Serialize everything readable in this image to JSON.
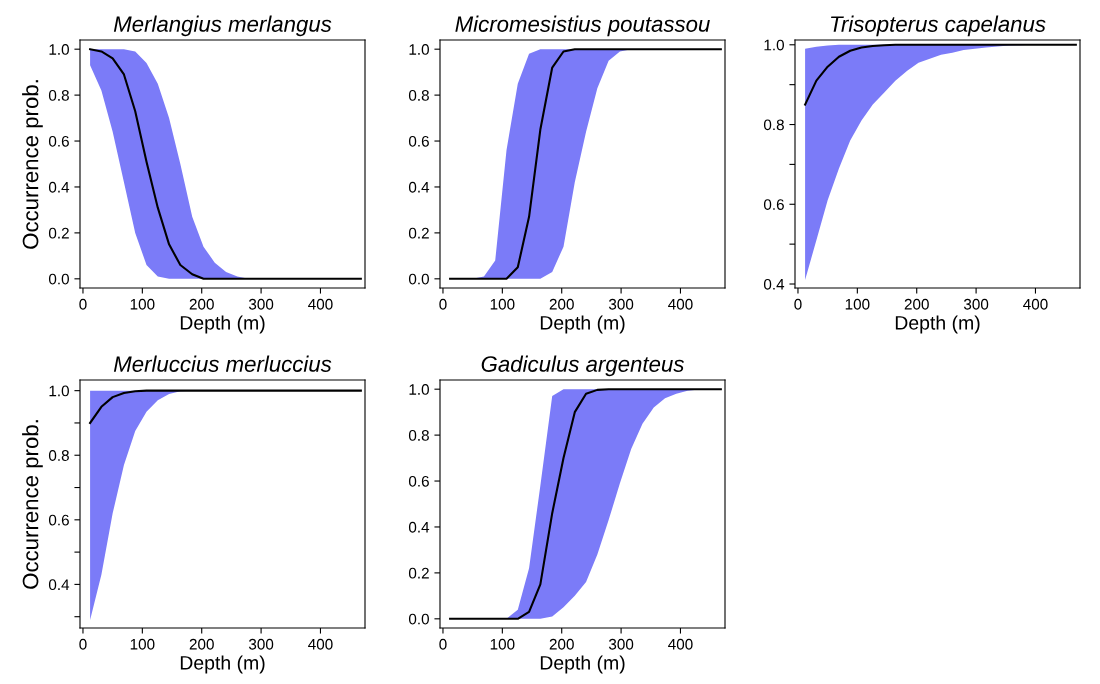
{
  "chart_data": [
    {
      "type": "line",
      "title": "Merlangius merlangus",
      "xlabel": "Depth (m)",
      "ylabel": "Occurrence prob.",
      "x": [
        12,
        31,
        50,
        69,
        88,
        107,
        126,
        145,
        164,
        184,
        203,
        222,
        241,
        260,
        279,
        298,
        317,
        336,
        355,
        374,
        393,
        412,
        431,
        450,
        468
      ],
      "series": [
        {
          "color": "#000000",
          "values": [
            1.0,
            0.99,
            0.96,
            0.89,
            0.73,
            0.51,
            0.31,
            0.15,
            0.06,
            0.02,
            0.0,
            0.0,
            0.0,
            0.0,
            0.0,
            0.0,
            0.0,
            0.0,
            0.0,
            0.0,
            0.0,
            0.0,
            0.0,
            0.0,
            0.0
          ],
          "lower": [
            0.93,
            0.82,
            0.64,
            0.42,
            0.2,
            0.06,
            0.01,
            0.0,
            0.0,
            0.0,
            0.0,
            0.0,
            0.0,
            0.0,
            0.0,
            0.0,
            0.0,
            0.0,
            0.0,
            0.0,
            0.0,
            0.0,
            0.0,
            0.0,
            0.0
          ],
          "upper": [
            1.0,
            1.0,
            1.0,
            1.0,
            0.99,
            0.94,
            0.85,
            0.7,
            0.5,
            0.27,
            0.14,
            0.07,
            0.03,
            0.01,
            0.0,
            0.0,
            0.0,
            0.0,
            0.0,
            0.0,
            0.0,
            0.0,
            0.0,
            0.0,
            0.0
          ]
        }
      ],
      "xlim": [
        -5,
        475
      ],
      "ylim": [
        -0.04,
        1.04
      ],
      "xticks": [
        0,
        100,
        200,
        300,
        400
      ],
      "yticks": [
        {
          "value": 0,
          "label": "0.0"
        },
        0.2,
        0.4,
        0.6,
        0.8,
        {
          "value": 1,
          "label": "1.0"
        }
      ]
    },
    {
      "type": "line",
      "title": "Micromesistius poutassou",
      "xlabel": "Depth (m)",
      "x": [
        12,
        31,
        50,
        69,
        88,
        107,
        126,
        145,
        164,
        184,
        203,
        222,
        241,
        260,
        279,
        298,
        317,
        336,
        355,
        374,
        393,
        412,
        431,
        450,
        468
      ],
      "series": [
        {
          "color": "#000000",
          "values": [
            0.0,
            0.0,
            0.0,
            0.0,
            0.0,
            0.0,
            0.05,
            0.27,
            0.65,
            0.92,
            0.99,
            1.0,
            1.0,
            1.0,
            1.0,
            1.0,
            1.0,
            1.0,
            1.0,
            1.0,
            1.0,
            1.0,
            1.0,
            1.0,
            1.0
          ],
          "lower": [
            0.0,
            0.0,
            0.0,
            0.01,
            0.08,
            0.56,
            0.85,
            0.98,
            1.0,
            1.0,
            1.0,
            1.0,
            1.0,
            1.0,
            1.0,
            1.0,
            1.0,
            1.0,
            1.0,
            1.0,
            1.0,
            1.0,
            1.0,
            1.0,
            1.0
          ],
          "upper": [
            0.0,
            0.0,
            0.0,
            0.0,
            0.0,
            0.0,
            0.0,
            0.0,
            0.0,
            0.03,
            0.14,
            0.42,
            0.64,
            0.83,
            0.95,
            0.99,
            1.0,
            1.0,
            1.0,
            1.0,
            1.0,
            1.0,
            1.0,
            1.0,
            1.0
          ]
        }
      ],
      "xlim": [
        -5,
        475
      ],
      "ylim": [
        -0.04,
        1.04
      ],
      "xticks": [
        0,
        100,
        200,
        300,
        400
      ],
      "yticks": [
        {
          "value": 0,
          "label": "0.0"
        },
        0.2,
        0.4,
        0.6,
        0.8,
        {
          "value": 1,
          "label": "1.0"
        }
      ]
    },
    {
      "type": "line",
      "title": "Trisopterus capelanus",
      "xlabel": "Depth (m)",
      "x": [
        12,
        31,
        50,
        69,
        88,
        107,
        126,
        145,
        164,
        184,
        203,
        222,
        241,
        260,
        279,
        298,
        317,
        336,
        355,
        374,
        393,
        412,
        431,
        450,
        468
      ],
      "series": [
        {
          "color": "#000000",
          "values": [
            0.85,
            0.91,
            0.945,
            0.97,
            0.985,
            0.993,
            0.997,
            0.999,
            1.0,
            1.0,
            1.0,
            1.0,
            1.0,
            1.0,
            1.0,
            1.0,
            1.0,
            1.0,
            1.0,
            1.0,
            1.0,
            1.0,
            1.0,
            1.0,
            1.0
          ],
          "lower": [
            0.41,
            0.51,
            0.61,
            0.69,
            0.76,
            0.81,
            0.85,
            0.88,
            0.91,
            0.935,
            0.955,
            0.965,
            0.975,
            0.98,
            0.987,
            0.99,
            0.993,
            0.996,
            0.998,
            0.999,
            1.0,
            1.0,
            1.0,
            1.0,
            1.0
          ],
          "upper": [
            0.99,
            0.995,
            0.998,
            1.0,
            1.0,
            1.0,
            1.0,
            1.0,
            1.0,
            1.0,
            1.0,
            1.0,
            1.0,
            1.0,
            1.0,
            1.0,
            1.0,
            1.0,
            1.0,
            1.0,
            1.0,
            1.0,
            1.0,
            1.0,
            1.0
          ]
        }
      ],
      "xlim": [
        -5,
        475
      ],
      "ylim": [
        0.39,
        1.012
      ],
      "xticks": [
        0,
        100,
        200,
        300,
        400
      ],
      "yticks": [
        0.4,
        {
          "value": 0.5,
          "label": null
        },
        0.6,
        {
          "value": 0.7,
          "label": null
        },
        0.8,
        {
          "value": 0.9,
          "label": null
        },
        {
          "value": 1,
          "label": "1.0"
        }
      ]
    },
    {
      "type": "line",
      "title": "Merluccius merluccius",
      "xlabel": "Depth (m)",
      "ylabel": "Occurrence prob.",
      "x": [
        12,
        31,
        50,
        69,
        88,
        107,
        126,
        145,
        164,
        184,
        203,
        222,
        241,
        260,
        279,
        298,
        317,
        336,
        355,
        374,
        393,
        412,
        431,
        450,
        468
      ],
      "series": [
        {
          "color": "#000000",
          "values": [
            0.9,
            0.95,
            0.98,
            0.993,
            0.998,
            1.0,
            1.0,
            1.0,
            1.0,
            1.0,
            1.0,
            1.0,
            1.0,
            1.0,
            1.0,
            1.0,
            1.0,
            1.0,
            1.0,
            1.0,
            1.0,
            1.0,
            1.0,
            1.0,
            1.0
          ],
          "lower": [
            0.29,
            0.43,
            0.62,
            0.77,
            0.875,
            0.935,
            0.97,
            0.99,
            0.998,
            1.0,
            1.0,
            1.0,
            1.0,
            1.0,
            1.0,
            1.0,
            1.0,
            1.0,
            1.0,
            1.0,
            1.0,
            1.0,
            1.0,
            1.0,
            1.0
          ],
          "upper": [
            1.0,
            1.0,
            1.0,
            1.0,
            1.0,
            1.0,
            1.0,
            1.0,
            1.0,
            1.0,
            1.0,
            1.0,
            1.0,
            1.0,
            1.0,
            1.0,
            1.0,
            1.0,
            1.0,
            1.0,
            1.0,
            1.0,
            1.0,
            1.0,
            1.0
          ]
        }
      ],
      "xlim": [
        -5,
        475
      ],
      "ylim": [
        0.265,
        1.033
      ],
      "xticks": [
        0,
        100,
        200,
        300,
        400
      ],
      "yticks": [
        {
          "value": 0.3,
          "label": null
        },
        0.4,
        {
          "value": 0.5,
          "label": null
        },
        0.6,
        {
          "value": 0.7,
          "label": null
        },
        0.8,
        {
          "value": 0.9,
          "label": null
        },
        {
          "value": 1,
          "label": "1.0"
        }
      ]
    },
    {
      "type": "line",
      "title": "Gadiculus argenteus",
      "xlabel": "Depth (m)",
      "x": [
        12,
        31,
        50,
        69,
        88,
        107,
        126,
        145,
        164,
        184,
        203,
        222,
        241,
        260,
        279,
        298,
        317,
        336,
        355,
        374,
        393,
        412,
        431,
        450,
        468
      ],
      "series": [
        {
          "color": "#000000",
          "values": [
            0.0,
            0.0,
            0.0,
            0.0,
            0.0,
            0.0,
            0.0,
            0.03,
            0.15,
            0.46,
            0.7,
            0.9,
            0.98,
            0.997,
            1.0,
            1.0,
            1.0,
            1.0,
            1.0,
            1.0,
            1.0,
            1.0,
            1.0,
            1.0,
            1.0
          ],
          "lower": [
            0.0,
            0.0,
            0.0,
            0.0,
            0.0,
            0.0,
            0.04,
            0.22,
            0.58,
            0.97,
            1.0,
            1.0,
            1.0,
            1.0,
            1.0,
            1.0,
            1.0,
            1.0,
            1.0,
            1.0,
            1.0,
            1.0,
            1.0,
            1.0,
            1.0
          ],
          "upper": [
            0.0,
            0.0,
            0.0,
            0.0,
            0.0,
            0.0,
            0.0,
            0.0,
            0.0,
            0.01,
            0.05,
            0.1,
            0.16,
            0.28,
            0.43,
            0.59,
            0.74,
            0.85,
            0.92,
            0.96,
            0.98,
            0.993,
            0.999,
            1.0,
            1.0
          ]
        }
      ],
      "xlim": [
        -5,
        475
      ],
      "ylim": [
        -0.04,
        1.04
      ],
      "xticks": [
        0,
        100,
        200,
        300,
        400
      ],
      "yticks": [
        {
          "value": 0,
          "label": "0.0"
        },
        0.2,
        0.4,
        0.6,
        0.8,
        {
          "value": 1,
          "label": "1.0"
        }
      ]
    }
  ]
}
